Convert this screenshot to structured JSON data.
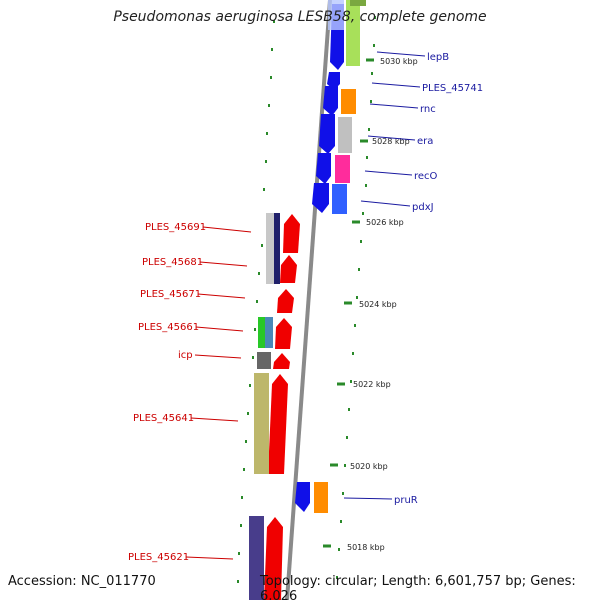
{
  "title": "Pseudomonas aeruginosa LESB58, complete genome",
  "accession": "Accession: NC_011770",
  "topology": "Topology: circular; Length: 6,601,757 bp; Genes: 6,026",
  "colors": {
    "backbone": "#8a8a8a",
    "forward_label": "#cc0000",
    "reverse_label": "#1a1aa0",
    "ticks": "#2a8a2a"
  },
  "scale_labels": [
    "5030 kbp",
    "5028 kbp",
    "5026 kbp",
    "5024 kbp",
    "5022 kbp",
    "5020 kbp",
    "5018 kbp"
  ],
  "reverse_strand_genes": [
    "lepB",
    "PLES_45741",
    "rnc",
    "era",
    "recO",
    "pdxJ",
    "pruR"
  ],
  "forward_strand_genes": [
    "PLES_45691",
    "PLES_45681",
    "PLES_45671",
    "PLES_45661",
    "icp",
    "PLES_45641",
    "PLES_45621"
  ]
}
